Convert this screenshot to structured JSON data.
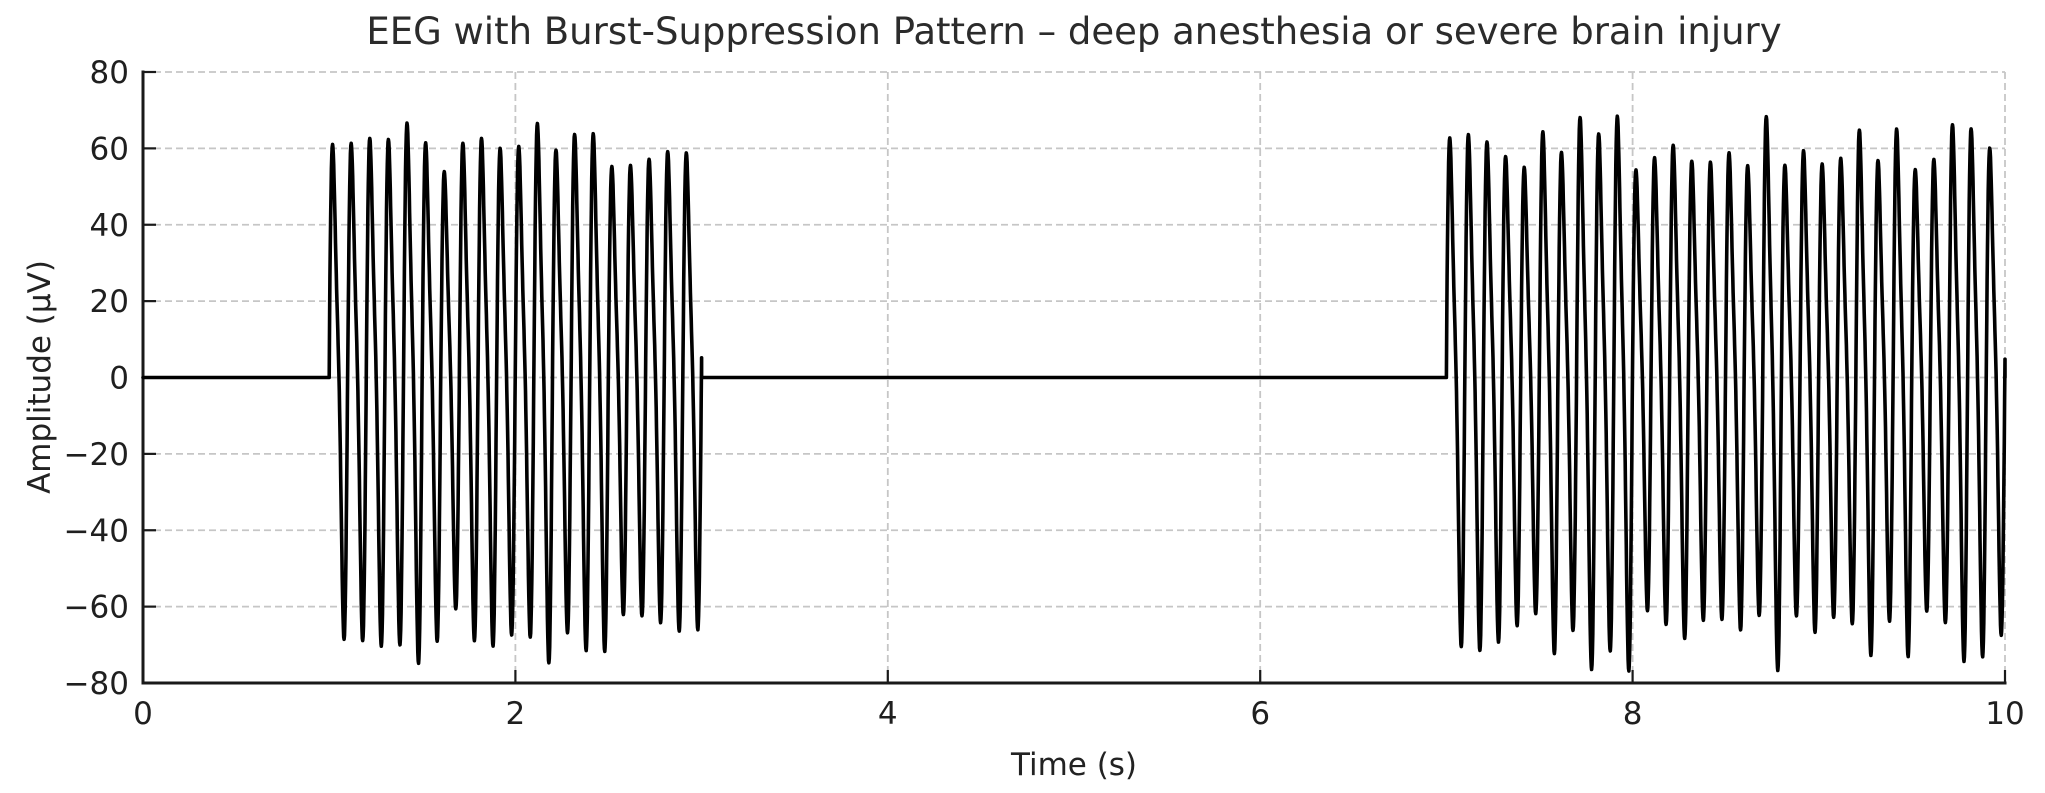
{
  "chart_data": {
    "type": "line",
    "title": "EEG with Burst-Suppression Pattern – deep anesthesia or severe brain injury",
    "xlabel": "Time (s)",
    "ylabel": "Amplitude (µV)",
    "xlim": [
      0,
      10
    ],
    "ylim": [
      -80,
      80
    ],
    "xticks": [
      0,
      2,
      4,
      6,
      8,
      10
    ],
    "xtick_labels": [
      "0",
      "2",
      "4",
      "6",
      "8",
      "10"
    ],
    "yticks": [
      -80,
      -60,
      -40,
      -20,
      0,
      20,
      40,
      60,
      80
    ],
    "ytick_labels": [
      "−80",
      "−60",
      "−40",
      "−20",
      "0",
      "20",
      "40",
      "60",
      "80"
    ],
    "grid": true,
    "grid_linestyle": "dashed",
    "legend": null,
    "background_color": "#ffffff",
    "line_color": "#000000",
    "grid_color": "#c6c6c6",
    "text_color": "#1f1f1f",
    "signal": {
      "description": "Suppressed (isoelectric, 0 µV) baseline interrupted by two high-amplitude burst episodes",
      "suppression_value_uv": 0,
      "suppression_intervals_s": [
        [
          0,
          1
        ],
        [
          3,
          7
        ]
      ],
      "bursts": [
        {
          "start_s": 1.0,
          "end_s": 3.0
        },
        {
          "start_s": 7.0,
          "end_s": 10.0
        }
      ],
      "burst_frequency_hz": 10,
      "harmonic_ratio": 0.25,
      "harmonic_phase_rad": 0.35,
      "base_amplitude_uv": 59,
      "amplitude_jitter_uv": 8,
      "peak_amplitude_range_uv": [
        55,
        74
      ],
      "sample_step_s": 0.002,
      "seed": 11
    }
  }
}
